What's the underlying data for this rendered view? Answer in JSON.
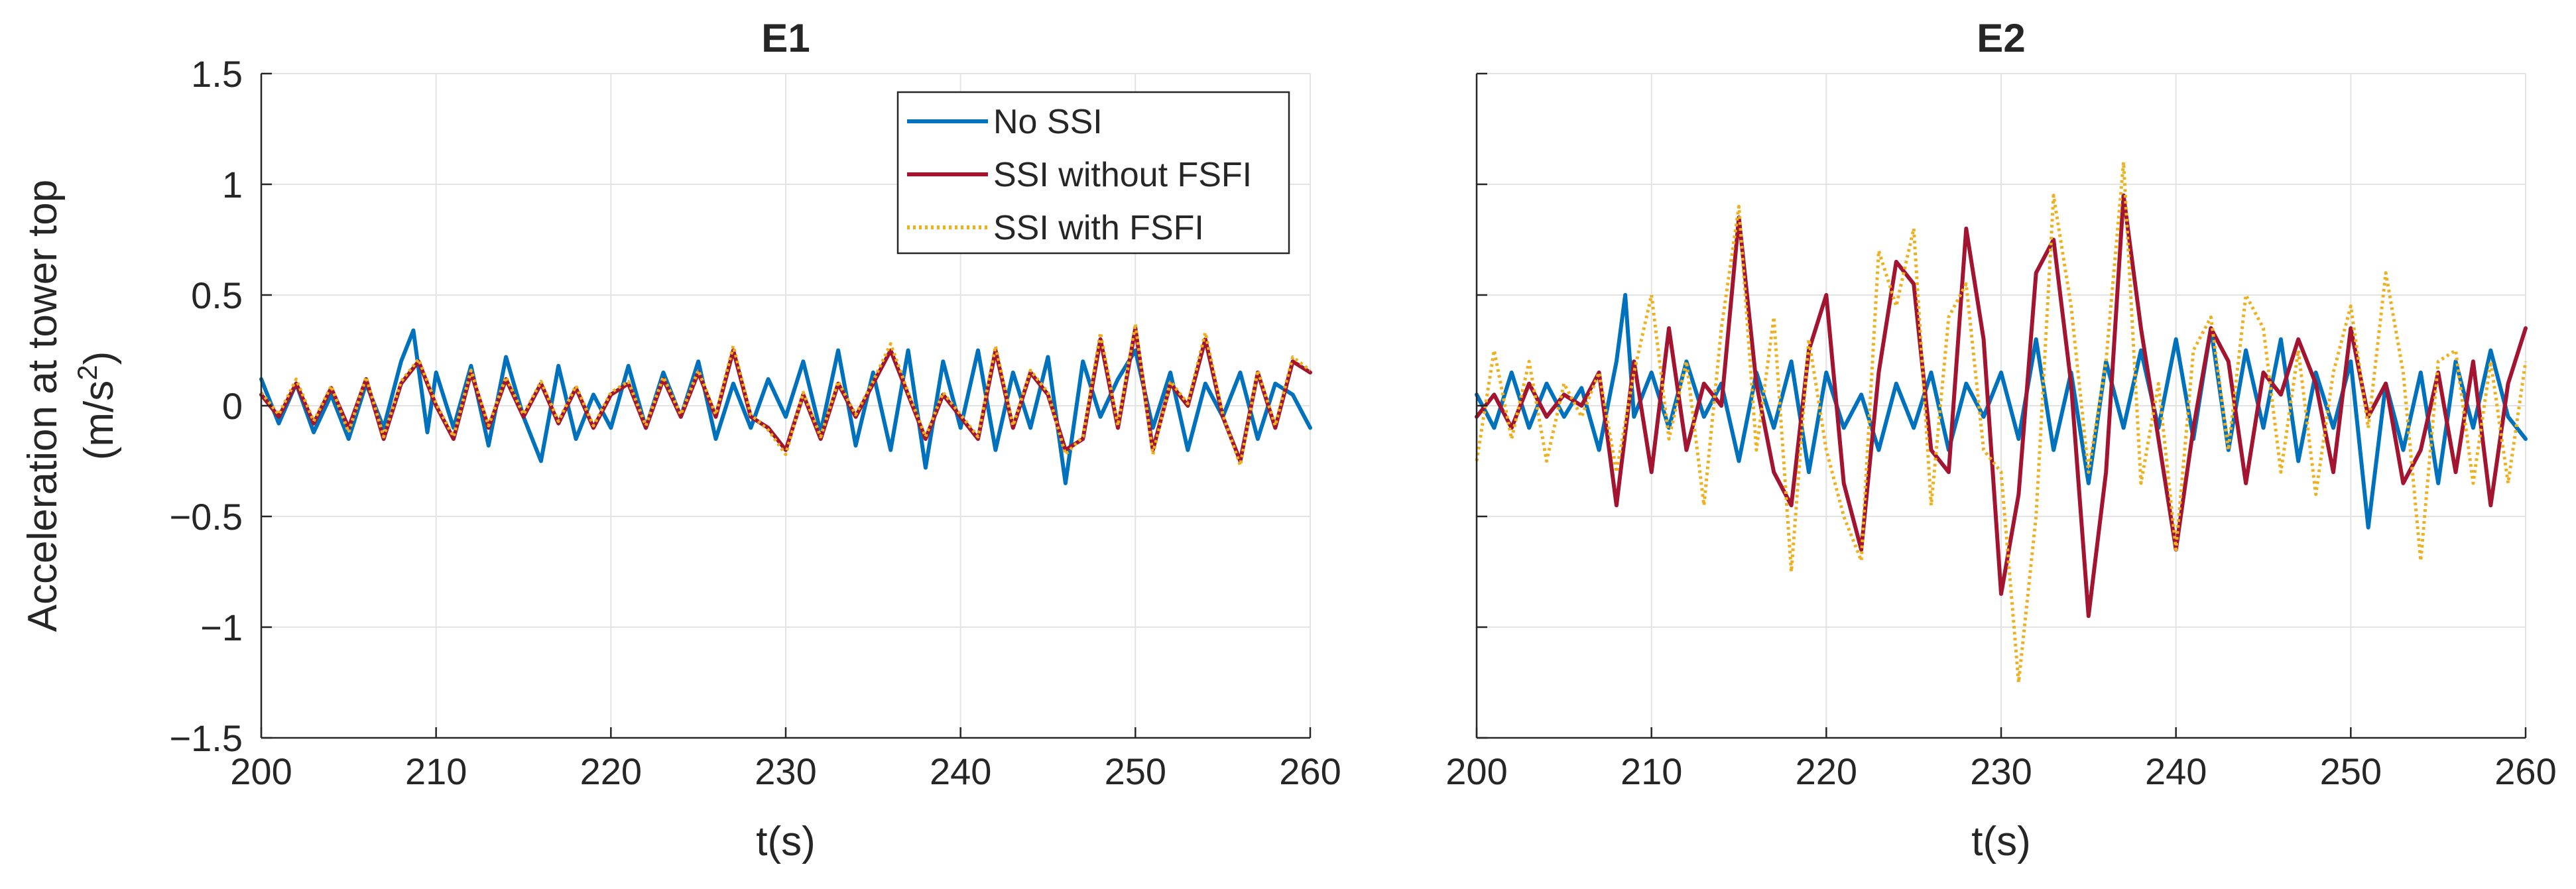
{
  "chart_data": [
    {
      "type": "line",
      "title": "E1",
      "xlabel": "t(s)",
      "ylabel": [
        "Acceleration at tower top",
        "(m/s",
        "2",
        ")"
      ],
      "xlim": [
        200,
        260
      ],
      "ylim": [
        -1.5,
        1.5
      ],
      "xticks": [
        "200",
        "210",
        "220",
        "230",
        "240",
        "250",
        "260"
      ],
      "yticks": [
        "−1.5",
        "−1",
        "−0.5",
        "0",
        "0.5",
        "1",
        "1.5"
      ],
      "grid": true,
      "legend": {
        "placement": "top-right",
        "entries": [
          "No SSI",
          "SSI without FSFI",
          "SSI with FSFI"
        ]
      },
      "series": [
        {
          "name": "No SSI",
          "color": "#0072BD",
          "style": "solid",
          "x": [
            200,
            201,
            202,
            203,
            204,
            205,
            206,
            207,
            208,
            208.7,
            209.5,
            210,
            211,
            212,
            213,
            214,
            215,
            216,
            217,
            218,
            219,
            220,
            221,
            222,
            223,
            224,
            225,
            226,
            227,
            228,
            229,
            230,
            231,
            232,
            233,
            234,
            235,
            236,
            237,
            238,
            239,
            240,
            241,
            242,
            243,
            244,
            245,
            246,
            247,
            248,
            249,
            250,
            251,
            252,
            253,
            254,
            255,
            256,
            257,
            258,
            259,
            260
          ],
          "y": [
            0.12,
            -0.08,
            0.1,
            -0.12,
            0.05,
            -0.15,
            0.1,
            -0.1,
            0.2,
            0.34,
            -0.12,
            0.15,
            -0.1,
            0.18,
            -0.18,
            0.22,
            -0.05,
            -0.25,
            0.18,
            -0.15,
            0.05,
            -0.1,
            0.18,
            -0.1,
            0.15,
            -0.05,
            0.2,
            -0.15,
            0.1,
            -0.1,
            0.12,
            -0.05,
            0.2,
            -0.12,
            0.25,
            -0.18,
            0.15,
            -0.2,
            0.25,
            -0.28,
            0.2,
            -0.1,
            0.25,
            -0.2,
            0.15,
            -0.1,
            0.22,
            -0.35,
            0.2,
            -0.05,
            0.12,
            0.25,
            -0.1,
            0.15,
            -0.2,
            0.1,
            -0.05,
            0.15,
            -0.15,
            0.1,
            0.05,
            -0.1
          ]
        },
        {
          "name": "SSI without FSFI",
          "color": "#A2142F",
          "style": "solid",
          "x": [
            200,
            201,
            202,
            203,
            204,
            205,
            206,
            207,
            208,
            209,
            210,
            211,
            212,
            213,
            214,
            215,
            216,
            217,
            218,
            219,
            220,
            221,
            222,
            223,
            224,
            225,
            226,
            227,
            228,
            229,
            230,
            231,
            232,
            233,
            234,
            235,
            236,
            237,
            238,
            239,
            240,
            241,
            242,
            243,
            244,
            245,
            246,
            247,
            248,
            249,
            250,
            251,
            252,
            253,
            254,
            255,
            256,
            257,
            258,
            259,
            260
          ],
          "y": [
            0.05,
            -0.05,
            0.1,
            -0.08,
            0.08,
            -0.1,
            0.12,
            -0.15,
            0.1,
            0.2,
            0.0,
            -0.15,
            0.15,
            -0.1,
            0.12,
            -0.05,
            0.1,
            -0.08,
            0.08,
            -0.1,
            0.05,
            0.1,
            -0.1,
            0.12,
            -0.05,
            0.15,
            -0.05,
            0.25,
            -0.05,
            -0.1,
            -0.2,
            0.05,
            -0.15,
            0.1,
            -0.05,
            0.1,
            0.25,
            0.05,
            -0.15,
            0.05,
            -0.05,
            -0.15,
            0.25,
            -0.1,
            0.15,
            0.05,
            -0.2,
            -0.15,
            0.3,
            -0.1,
            0.35,
            -0.2,
            0.1,
            0.0,
            0.3,
            -0.05,
            -0.25,
            0.15,
            -0.1,
            0.2,
            0.15
          ]
        },
        {
          "name": "SSI with FSFI",
          "color": "#EDB120",
          "style": "dotted",
          "x": [
            200,
            201,
            202,
            203,
            204,
            205,
            206,
            207,
            208,
            209,
            210,
            211,
            212,
            213,
            214,
            215,
            216,
            217,
            218,
            219,
            220,
            221,
            222,
            223,
            224,
            225,
            226,
            227,
            228,
            229,
            230,
            231,
            232,
            233,
            234,
            235,
            236,
            237,
            238,
            239,
            240,
            241,
            242,
            243,
            244,
            245,
            246,
            247,
            248,
            249,
            250,
            251,
            252,
            253,
            254,
            255,
            256,
            257,
            258,
            259,
            260
          ],
          "y": [
            0.06,
            -0.04,
            0.12,
            -0.07,
            0.09,
            -0.12,
            0.13,
            -0.14,
            0.11,
            0.21,
            0.01,
            -0.14,
            0.16,
            -0.09,
            0.13,
            -0.04,
            0.11,
            -0.07,
            0.09,
            -0.09,
            0.06,
            0.11,
            -0.09,
            0.13,
            -0.04,
            0.16,
            -0.04,
            0.27,
            -0.04,
            -0.11,
            -0.22,
            0.06,
            -0.14,
            0.11,
            -0.04,
            0.11,
            0.28,
            0.06,
            -0.14,
            0.06,
            -0.04,
            -0.14,
            0.27,
            -0.09,
            0.16,
            0.06,
            -0.22,
            -0.14,
            0.33,
            -0.09,
            0.37,
            -0.22,
            0.11,
            0.01,
            0.33,
            -0.04,
            -0.27,
            0.16,
            -0.09,
            0.22,
            0.16
          ]
        }
      ]
    },
    {
      "type": "line",
      "title": "E2",
      "xlabel": "t(s)",
      "xlim": [
        200,
        260
      ],
      "ylim": [
        -1.5,
        1.5
      ],
      "xticks": [
        "200",
        "210",
        "220",
        "230",
        "240",
        "250",
        "260"
      ],
      "grid": true,
      "series": [
        {
          "name": "No SSI",
          "color": "#0072BD",
          "style": "solid",
          "x": [
            200,
            201,
            202,
            203,
            204,
            205,
            206,
            207,
            208,
            208.5,
            209,
            210,
            211,
            212,
            213,
            214,
            215,
            216,
            217,
            218,
            219,
            220,
            221,
            222,
            223,
            224,
            225,
            226,
            227,
            228,
            229,
            230,
            231,
            232,
            233,
            234,
            235,
            236,
            237,
            238,
            239,
            240,
            241,
            242,
            243,
            244,
            245,
            246,
            247,
            248,
            249,
            250,
            251,
            252,
            253,
            254,
            255,
            256,
            257,
            258,
            259,
            260
          ],
          "y": [
            0.05,
            -0.1,
            0.15,
            -0.1,
            0.1,
            -0.05,
            0.08,
            -0.2,
            0.2,
            0.5,
            -0.05,
            0.15,
            -0.1,
            0.2,
            -0.05,
            0.1,
            -0.25,
            0.15,
            -0.1,
            0.2,
            -0.3,
            0.15,
            -0.1,
            0.05,
            -0.2,
            0.1,
            -0.1,
            0.15,
            -0.2,
            0.1,
            -0.05,
            0.15,
            -0.15,
            0.3,
            -0.2,
            0.15,
            -0.35,
            0.2,
            -0.1,
            0.25,
            -0.1,
            0.3,
            -0.15,
            0.35,
            -0.2,
            0.25,
            -0.1,
            0.3,
            -0.25,
            0.15,
            -0.1,
            0.2,
            -0.55,
            0.1,
            -0.2,
            0.15,
            -0.35,
            0.2,
            -0.1,
            0.25,
            -0.05,
            -0.15
          ]
        },
        {
          "name": "SSI without FSFI",
          "color": "#A2142F",
          "style": "solid",
          "x": [
            200,
            201,
            202,
            203,
            204,
            205,
            206,
            207,
            208,
            209,
            210,
            211,
            212,
            213,
            214,
            215,
            216,
            217,
            218,
            219,
            220,
            221,
            222,
            223,
            224,
            225,
            226,
            227,
            228,
            229,
            230,
            231,
            232,
            233,
            234,
            235,
            236,
            237,
            238,
            239,
            240,
            241,
            242,
            243,
            244,
            245,
            246,
            247,
            248,
            249,
            250,
            251,
            252,
            253,
            254,
            255,
            256,
            257,
            258,
            259,
            260
          ],
          "y": [
            -0.05,
            0.05,
            -0.1,
            0.1,
            -0.05,
            0.05,
            0.0,
            0.15,
            -0.45,
            0.2,
            -0.3,
            0.35,
            -0.2,
            0.1,
            0.0,
            0.85,
            0.1,
            -0.3,
            -0.45,
            0.25,
            0.5,
            -0.35,
            -0.65,
            0.15,
            0.65,
            0.55,
            -0.2,
            -0.3,
            0.8,
            0.3,
            -0.85,
            -0.4,
            0.6,
            0.75,
            0.1,
            -0.95,
            -0.3,
            0.95,
            0.35,
            -0.15,
            -0.65,
            -0.1,
            0.35,
            0.2,
            -0.35,
            0.15,
            0.05,
            0.3,
            0.1,
            -0.3,
            0.35,
            -0.05,
            0.1,
            -0.35,
            -0.2,
            0.15,
            -0.3,
            0.2,
            -0.45,
            0.1,
            0.35
          ]
        },
        {
          "name": "SSI with FSFI",
          "color": "#EDB120",
          "style": "dotted",
          "x": [
            200,
            201,
            202,
            203,
            204,
            205,
            206,
            207,
            208,
            209,
            210,
            211,
            212,
            213,
            214,
            215,
            216,
            217,
            218,
            219,
            220,
            221,
            222,
            223,
            224,
            225,
            226,
            227,
            228,
            229,
            230,
            231,
            232,
            233,
            234,
            235,
            236,
            237,
            238,
            239,
            240,
            241,
            242,
            243,
            244,
            245,
            246,
            247,
            248,
            249,
            250,
            251,
            252,
            253,
            254,
            255,
            256,
            257,
            258,
            259,
            260
          ],
          "y": [
            -0.25,
            0.25,
            -0.15,
            0.2,
            -0.25,
            0.1,
            -0.05,
            0.15,
            -0.3,
            0.15,
            0.5,
            -0.15,
            0.2,
            -0.45,
            0.35,
            0.9,
            -0.2,
            0.4,
            -0.75,
            0.3,
            -0.2,
            -0.5,
            -0.7,
            0.7,
            0.45,
            0.8,
            -0.45,
            0.4,
            0.55,
            -0.2,
            -0.3,
            -1.25,
            -0.5,
            0.95,
            0.45,
            -0.3,
            0.2,
            1.1,
            -0.35,
            0.1,
            -0.65,
            0.25,
            0.4,
            -0.2,
            0.5,
            0.35,
            -0.3,
            0.25,
            -0.4,
            0.15,
            0.45,
            -0.1,
            0.6,
            0.15,
            -0.7,
            0.2,
            0.25,
            -0.35,
            0.2,
            -0.35,
            0.2
          ]
        }
      ]
    }
  ]
}
